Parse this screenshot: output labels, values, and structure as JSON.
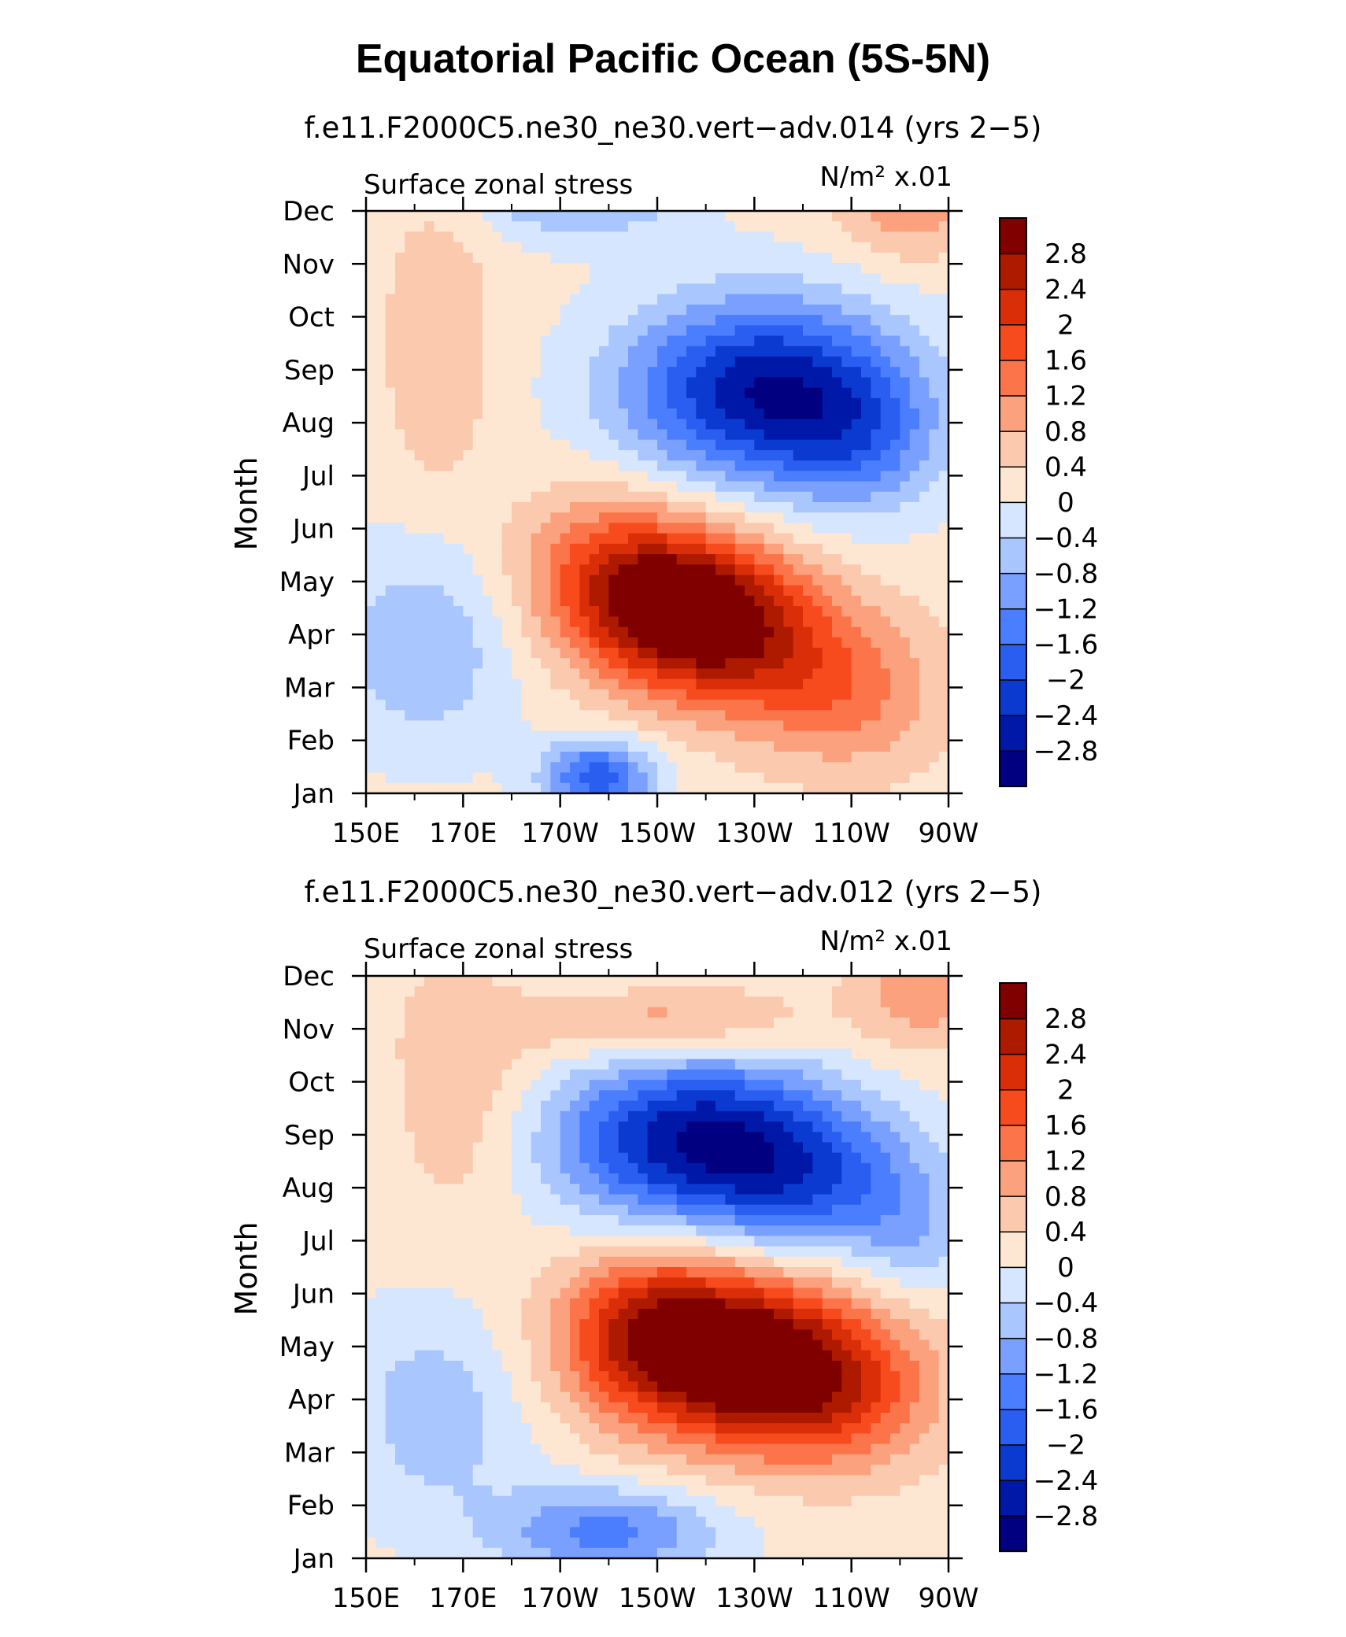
{
  "chart_data": {
    "type": "heatmap",
    "title": "Equatorial Pacific Ocean (5S-5N)",
    "panels": [
      {
        "subtitle": "f.e11.F2000C5.ne30_ne30.vert−adv.014 (yrs 2−5)",
        "left_label": "Surface zonal stress",
        "right_label": "N/m² x.01",
        "ylabel": "Month",
        "zmin_approx": -3.0,
        "zmax_approx": 3.2,
        "features": [
          {
            "lon": 215,
            "month": 3.5,
            "value": 3.0,
            "sx": 16,
            "sy": 1.0,
            "tilt": 0
          },
          {
            "lon": 233,
            "month": 2.6,
            "value": 1.2,
            "sx": 18,
            "sy": 1.0,
            "tilt": 0
          },
          {
            "lon": 250,
            "month": 1.6,
            "value": 0.8,
            "sx": 14,
            "sy": 1.0,
            "tilt": 0
          },
          {
            "lon": 200,
            "month": 4.5,
            "value": 1.0,
            "sx": 14,
            "sy": 1.0,
            "tilt": 0
          },
          {
            "lon": 232,
            "month": 7.6,
            "value": -2.9,
            "sx": 20,
            "sy": 1.2,
            "tilt": 0
          },
          {
            "lon": 252,
            "month": 6.6,
            "value": -1.0,
            "sx": 12,
            "sy": 1.0,
            "tilt": 0
          },
          {
            "lon": 198,
            "month": 0.3,
            "value": -2.0,
            "sx": 8,
            "sy": 0.5,
            "tilt": 0
          },
          {
            "lon": 162,
            "month": 2.8,
            "value": -0.9,
            "sx": 14,
            "sy": 1.4,
            "tilt": 0
          },
          {
            "lon": 194,
            "month": 11.4,
            "value": -1.3,
            "sx": 14,
            "sy": 0.6,
            "tilt": 0
          },
          {
            "lon": 262,
            "month": 11.3,
            "value": 1.1,
            "sx": 10,
            "sy": 0.8,
            "tilt": 0
          },
          {
            "lon": 165,
            "month": 8.5,
            "value": 0.6,
            "sx": 8,
            "sy": 2.0,
            "tilt": 0
          }
        ]
      },
      {
        "subtitle": "f.e11.F2000C5.ne30_ne30.vert−adv.012 (yrs 2−5)",
        "left_label": "Surface zonal stress",
        "right_label": "N/m² x.01",
        "ylabel": "Month",
        "zmin_approx": -3.0,
        "zmax_approx": 3.2,
        "features": [
          {
            "lon": 224,
            "month": 3.9,
            "value": 3.2,
            "sx": 20,
            "sy": 1.1,
            "tilt": 0
          },
          {
            "lon": 245,
            "month": 3.0,
            "value": 1.4,
            "sx": 16,
            "sy": 1.0,
            "tilt": 0
          },
          {
            "lon": 208,
            "month": 4.6,
            "value": 1.0,
            "sx": 12,
            "sy": 1.0,
            "tilt": 0
          },
          {
            "lon": 218,
            "month": 7.9,
            "value": -2.9,
            "sx": 20,
            "sy": 1.1,
            "tilt": 0
          },
          {
            "lon": 244,
            "month": 7.0,
            "value": -1.4,
            "sx": 16,
            "sy": 1.0,
            "tilt": 0
          },
          {
            "lon": 263,
            "month": 6.0,
            "value": -0.6,
            "sx": 8,
            "sy": 0.9,
            "tilt": 0
          },
          {
            "lon": 200,
            "month": 0.5,
            "value": -1.5,
            "sx": 16,
            "sy": 0.6,
            "tilt": 0
          },
          {
            "lon": 165,
            "month": 2.8,
            "value": -0.8,
            "sx": 14,
            "sy": 1.5,
            "tilt": 0
          },
          {
            "lon": 212,
            "month": 10.1,
            "value": 1.0,
            "sx": 20,
            "sy": 0.5,
            "tilt": 0
          },
          {
            "lon": 195,
            "month": 11.7,
            "value": -1.0,
            "sx": 14,
            "sy": 0.5,
            "tilt": 0
          },
          {
            "lon": 265,
            "month": 10.9,
            "value": 1.0,
            "sx": 10,
            "sy": 0.9,
            "tilt": 0
          },
          {
            "lon": 170,
            "month": 9.0,
            "value": 0.6,
            "sx": 10,
            "sy": 2.0,
            "tilt": 0
          }
        ]
      }
    ],
    "xaxis": {
      "range": [
        150,
        270
      ],
      "tick_values": [
        150,
        170,
        190,
        210,
        230,
        250,
        270
      ],
      "tick_labels": [
        "150E",
        "170E",
        "170W",
        "150W",
        "130W",
        "110W",
        "90W"
      ],
      "minor_tick_values": [
        160,
        180,
        200,
        220,
        240,
        260
      ]
    },
    "yaxis": {
      "range": [
        0,
        11
      ],
      "tick_labels": [
        "Jan",
        "Feb",
        "Mar",
        "Apr",
        "May",
        "Jun",
        "Jul",
        "Aug",
        "Sep",
        "Oct",
        "Nov",
        "Dec"
      ]
    },
    "colorbar": {
      "levels": [
        -2.8,
        -2.4,
        -2,
        -1.6,
        -1.2,
        -0.8,
        -0.4,
        0,
        0.4,
        0.8,
        1.2,
        1.6,
        2,
        2.4,
        2.8
      ],
      "labels": [
        "−2.8",
        "−2.4",
        "−2",
        "−1.6",
        "−1.2",
        "−0.8",
        "−0.4",
        "0",
        "0.4",
        "0.8",
        "1.2",
        "1.6",
        "2",
        "2.4",
        "2.8"
      ],
      "colors": [
        "#000080",
        "#0018a8",
        "#0a3ad0",
        "#2a5ef0",
        "#4a7eff",
        "#7aa0ff",
        "#aac6ff",
        "#d6e6ff",
        "#fde6d2",
        "#fbc9ad",
        "#fba17d",
        "#fc7449",
        "#f74b1e",
        "#da2e08",
        "#ae1a00",
        "#800000"
      ]
    }
  }
}
